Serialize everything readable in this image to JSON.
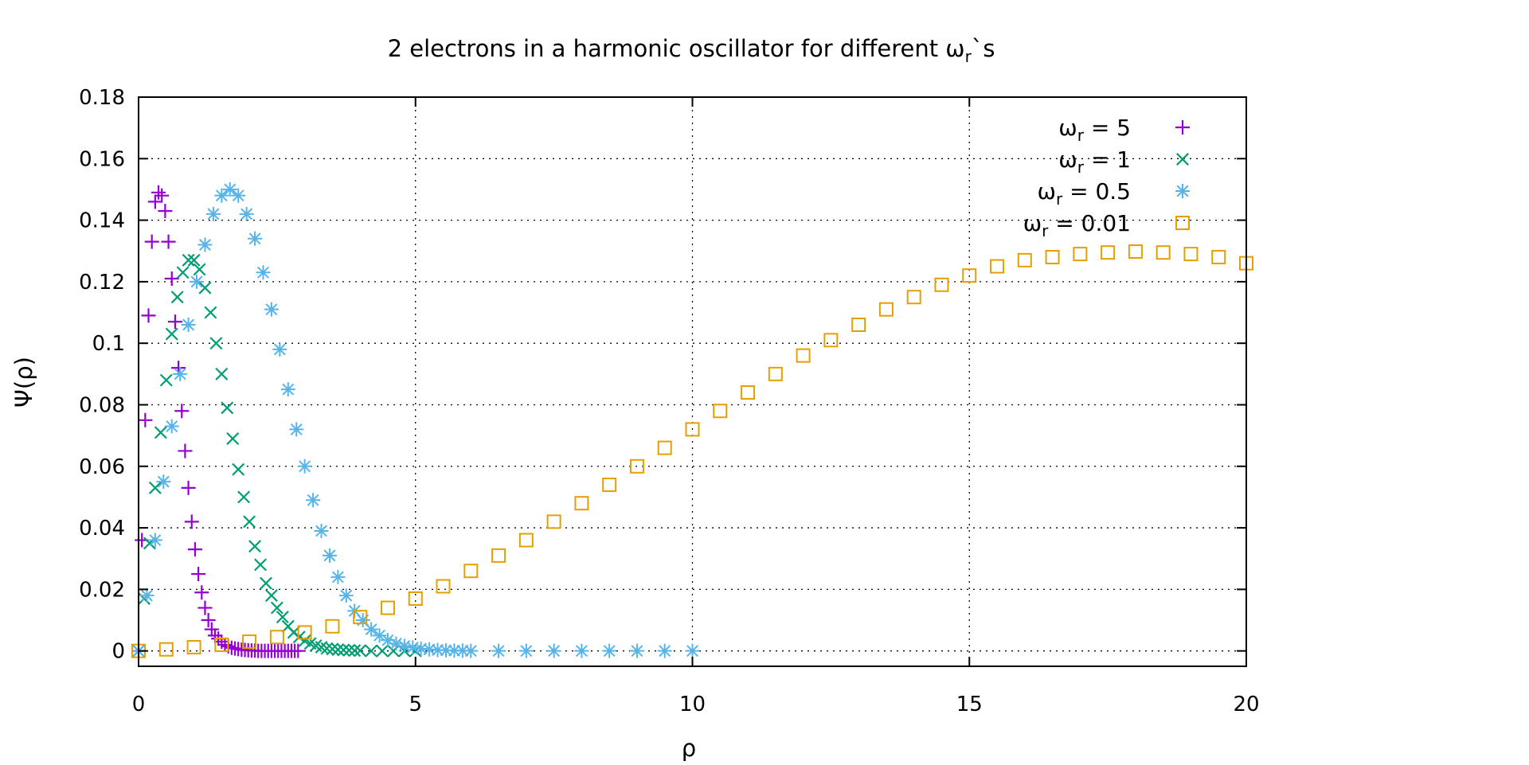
{
  "chart_data": {
    "type": "scatter",
    "title": "2 electrons in a harmonic oscillator for different ωr`s",
    "xlabel": "ρ",
    "ylabel": "Ψ(ρ)",
    "xlim": [
      0,
      20
    ],
    "ylim": [
      -0.005,
      0.18
    ],
    "xticks": [
      "0",
      "5",
      "10",
      "15",
      "20"
    ],
    "yticks": [
      "0",
      "0.02",
      "0.04",
      "0.06",
      "0.08",
      "0.1",
      "0.12",
      "0.14",
      "0.16",
      "0.18"
    ],
    "grid": true,
    "legend_position": "top-right",
    "series": [
      {
        "name": "ωr = 5",
        "color": "#9400d3",
        "marker": "plus",
        "x": [
          0.0,
          0.06,
          0.12,
          0.18,
          0.24,
          0.3,
          0.36,
          0.42,
          0.48,
          0.54,
          0.6,
          0.66,
          0.72,
          0.78,
          0.84,
          0.9,
          0.96,
          1.02,
          1.08,
          1.14,
          1.2,
          1.26,
          1.32,
          1.38,
          1.44,
          1.5,
          1.56,
          1.62,
          1.68,
          1.74,
          1.8,
          1.86,
          1.92,
          1.98,
          2.04,
          2.1,
          2.16,
          2.22,
          2.28,
          2.34,
          2.4,
          2.46,
          2.52,
          2.58,
          2.64,
          2.7,
          2.76,
          2.82,
          2.88
        ],
        "y": [
          0.0,
          0.036,
          0.075,
          0.109,
          0.133,
          0.146,
          0.149,
          0.148,
          0.143,
          0.133,
          0.121,
          0.107,
          0.092,
          0.078,
          0.065,
          0.053,
          0.042,
          0.033,
          0.025,
          0.019,
          0.014,
          0.01,
          0.007,
          0.005,
          0.004,
          0.003,
          0.002,
          0.0015,
          0.001,
          0.0008,
          0.0006,
          0.0004,
          0.0003,
          0.0002,
          0.0001,
          0.0001,
          0.0,
          0.0,
          0.0,
          0.0,
          0.0,
          0.0,
          0.0,
          0.0,
          0.0,
          0.0,
          0.0,
          0.0,
          0.0
        ]
      },
      {
        "name": "ωr = 1",
        "color": "#009e73",
        "marker": "cross",
        "x": [
          0.0,
          0.1,
          0.2,
          0.3,
          0.4,
          0.5,
          0.6,
          0.7,
          0.8,
          0.9,
          1.0,
          1.1,
          1.2,
          1.3,
          1.4,
          1.5,
          1.6,
          1.7,
          1.8,
          1.9,
          2.0,
          2.1,
          2.2,
          2.3,
          2.4,
          2.5,
          2.6,
          2.7,
          2.8,
          2.9,
          3.0,
          3.1,
          3.2,
          3.3,
          3.4,
          3.5,
          3.6,
          3.7,
          3.8,
          3.9,
          4.0,
          4.2,
          4.4,
          4.6,
          4.8,
          5.0
        ],
        "y": [
          0.0,
          0.017,
          0.035,
          0.053,
          0.071,
          0.088,
          0.103,
          0.115,
          0.123,
          0.127,
          0.127,
          0.124,
          0.118,
          0.11,
          0.1,
          0.09,
          0.079,
          0.069,
          0.059,
          0.05,
          0.042,
          0.034,
          0.028,
          0.022,
          0.018,
          0.014,
          0.011,
          0.008,
          0.006,
          0.0045,
          0.0033,
          0.0024,
          0.0017,
          0.0012,
          0.0008,
          0.0006,
          0.0004,
          0.0003,
          0.0002,
          0.0001,
          0.0001,
          0.0,
          0.0,
          0.0,
          0.0,
          0.0
        ]
      },
      {
        "name": "ωr = 0.5",
        "color": "#56b4e9",
        "marker": "star",
        "x": [
          0.0,
          0.15,
          0.3,
          0.45,
          0.6,
          0.75,
          0.9,
          1.05,
          1.2,
          1.35,
          1.5,
          1.65,
          1.8,
          1.95,
          2.1,
          2.25,
          2.4,
          2.55,
          2.7,
          2.85,
          3.0,
          3.15,
          3.3,
          3.45,
          3.6,
          3.75,
          3.9,
          4.05,
          4.2,
          4.35,
          4.5,
          4.65,
          4.8,
          4.95,
          5.1,
          5.25,
          5.4,
          5.55,
          5.7,
          5.85,
          6.0,
          6.5,
          7.0,
          7.5,
          8.0,
          8.5,
          9.0,
          9.5,
          10.0
        ],
        "y": [
          0.0,
          0.018,
          0.036,
          0.055,
          0.073,
          0.09,
          0.106,
          0.12,
          0.132,
          0.142,
          0.148,
          0.15,
          0.148,
          0.142,
          0.134,
          0.123,
          0.111,
          0.098,
          0.085,
          0.072,
          0.06,
          0.049,
          0.039,
          0.031,
          0.024,
          0.018,
          0.013,
          0.01,
          0.007,
          0.005,
          0.0035,
          0.0024,
          0.0016,
          0.0011,
          0.0007,
          0.0005,
          0.0003,
          0.0002,
          0.0001,
          0.0001,
          0.0,
          0.0,
          0.0,
          0.0,
          0.0,
          0.0,
          0.0,
          0.0,
          0.0
        ]
      },
      {
        "name": "ωr = 0.01",
        "color": "#e69f00",
        "marker": "square",
        "x": [
          0.0,
          0.5,
          1.0,
          1.5,
          2.0,
          2.5,
          3.0,
          3.5,
          4.0,
          4.5,
          5.0,
          5.5,
          6.0,
          6.5,
          7.0,
          7.5,
          8.0,
          8.5,
          9.0,
          9.5,
          10.0,
          10.5,
          11.0,
          11.5,
          12.0,
          12.5,
          13.0,
          13.5,
          14.0,
          14.5,
          15.0,
          15.5,
          16.0,
          16.5,
          17.0,
          17.5,
          18.0,
          18.5,
          19.0,
          19.5,
          20.0
        ],
        "y": [
          0.0,
          0.0005,
          0.0012,
          0.002,
          0.003,
          0.0045,
          0.006,
          0.008,
          0.011,
          0.014,
          0.017,
          0.021,
          0.026,
          0.031,
          0.036,
          0.042,
          0.048,
          0.054,
          0.06,
          0.066,
          0.072,
          0.078,
          0.084,
          0.09,
          0.096,
          0.101,
          0.106,
          0.111,
          0.115,
          0.119,
          0.122,
          0.125,
          0.127,
          0.128,
          0.129,
          0.1295,
          0.1298,
          0.1295,
          0.129,
          0.128,
          0.126
        ]
      }
    ]
  }
}
